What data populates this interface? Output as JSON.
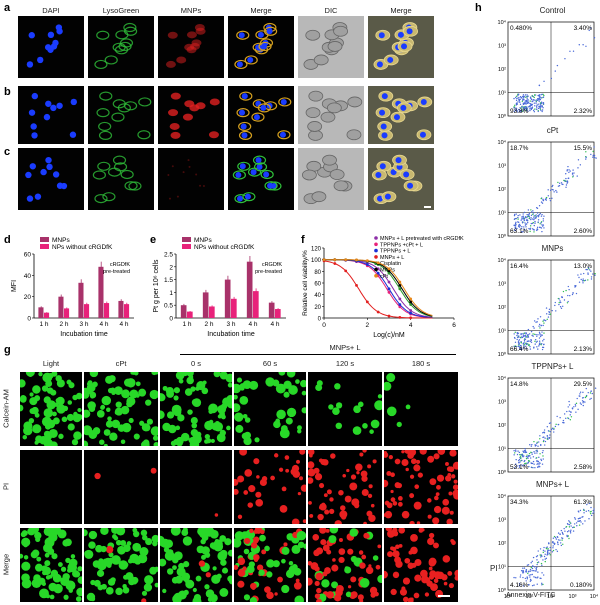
{
  "panel_labels": [
    "a",
    "b",
    "c",
    "d",
    "e",
    "f",
    "g",
    "h"
  ],
  "micro": {
    "headers": [
      "DAPI",
      "LysoGreen",
      "MNPs",
      "Merge",
      "DIC",
      "Merge"
    ],
    "colors": {
      "dapi": "#1a3cff",
      "lyso": "#2fbf3a",
      "mnp": "#e02020",
      "dic": "#9a9a9a"
    }
  },
  "g": {
    "headers": [
      "Light",
      "cPt",
      "0 s",
      "60 s",
      "120 s",
      "180 s"
    ],
    "group_label": "MNPs+ L",
    "rows": [
      "Calcein-AM",
      "PI",
      "Merge"
    ]
  },
  "chart_data": [
    {
      "panel": "d",
      "type": "bar",
      "ylabel": "MFI",
      "xlabel": "Incubation time",
      "categories": [
        "1 h",
        "2 h",
        "3 h",
        "4 h",
        "4 h"
      ],
      "ylim": [
        0,
        60
      ],
      "yticks": [
        0,
        20,
        40,
        60
      ],
      "series": [
        {
          "name": "MNPs",
          "color": "#a8326a",
          "values": [
            10,
            20,
            33,
            48,
            16
          ]
        },
        {
          "name": "NPs without cRGDfK",
          "color": "#e8227a",
          "values": [
            5,
            9,
            13,
            14,
            13
          ]
        }
      ],
      "annotation": [
        "cRGDfK",
        "pre-treated"
      ]
    },
    {
      "panel": "e",
      "type": "bar",
      "ylabel": "Pt g per 10⁶ cells",
      "xlabel": "Incubation time",
      "categories": [
        "1 h",
        "2 h",
        "3 h",
        "4 h",
        "4 h"
      ],
      "ylim": [
        0,
        2.5
      ],
      "yticks": [
        0,
        0.5,
        1.0,
        1.5,
        2.0,
        2.5
      ],
      "series": [
        {
          "name": "MNPs",
          "color": "#a8326a",
          "values": [
            0.5,
            1.0,
            1.5,
            2.2,
            0.6
          ]
        },
        {
          "name": "NPs without cRGDfK",
          "color": "#e8227a",
          "values": [
            0.25,
            0.45,
            0.75,
            1.05,
            0.35
          ]
        }
      ],
      "annotation": [
        "cRGDfK",
        "pre-treated"
      ]
    },
    {
      "panel": "f",
      "type": "line",
      "ylabel": "Relative cell viability/%",
      "xlabel": "Log(c)/nM",
      "xlim": [
        0,
        6
      ],
      "ylim": [
        0,
        120
      ],
      "xticks": [
        0,
        2,
        4,
        6
      ],
      "yticks": [
        0,
        20,
        40,
        60,
        80,
        100,
        120
      ],
      "series": [
        {
          "name": "MNPs + L pretreated with cRGDfK",
          "color": "#8e2fa8",
          "ic50": 3.2
        },
        {
          "name": "TPPNPs +cPt + L",
          "color": "#e8227a",
          "ic50": 2.9
        },
        {
          "name": "TPPNPs + L",
          "color": "#1a2fd6",
          "ic50": 3.0
        },
        {
          "name": "MNPs + L",
          "color": "#e22020",
          "ic50": 1.6
        },
        {
          "name": "Cisplatin",
          "color": "#2f9a2f",
          "ic50": 3.5
        },
        {
          "name": "MNPs",
          "color": "#000000",
          "ic50": 3.6
        },
        {
          "name": "cPt",
          "color": "#e8881a",
          "ic50": 3.7
        }
      ]
    }
  ],
  "h": {
    "panels": [
      {
        "title": "Control",
        "ul": "0.480%",
        "ur": "3.40%",
        "ll": "93.8%",
        "lr": "2.32%"
      },
      {
        "title": "cPt",
        "ul": "18.7%",
        "ur": "15.5%",
        "ll": "63.1%",
        "lr": "2.60%"
      },
      {
        "title": "MNPs",
        "ul": "16.4%",
        "ur": "13.0%",
        "ll": "66.4%",
        "lr": "2.13%"
      },
      {
        "title": "TPPNPs+ L",
        "ul": "14.8%",
        "ur": "29.5%",
        "ll": "53.1%",
        "lr": "2.58%"
      },
      {
        "title": "MNPs+ L",
        "ul": "34.3%",
        "ur": "61.3%",
        "ll": "4.16%",
        "lr": "0.180%"
      }
    ],
    "yticks": [
      "10⁰",
      "10¹",
      "10²",
      "10³",
      "10⁴"
    ],
    "xticks": [
      "10⁰",
      "10¹",
      "10²",
      "10³",
      "10⁴"
    ],
    "ylabel": "PI",
    "xlabel": "Annexin V-FITC"
  }
}
